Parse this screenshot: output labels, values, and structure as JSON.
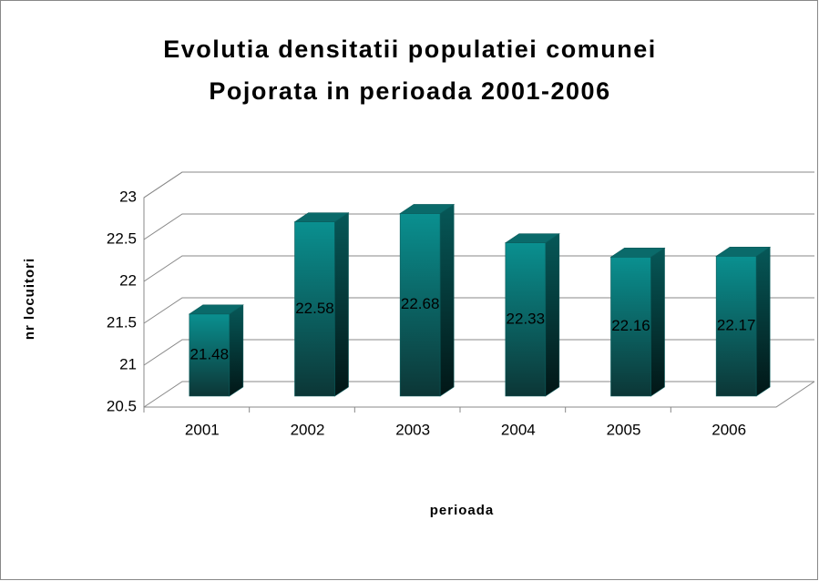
{
  "chart_data": {
    "type": "bar3d",
    "title": [
      "Evolutia densitatii populatiei comunei",
      "Pojorata in perioada 2001-2006"
    ],
    "x_label": "perioada",
    "y_label": "nr locuitori",
    "categories": [
      "2001",
      "2002",
      "2003",
      "2004",
      "2005",
      "2006"
    ],
    "values": [
      21.48,
      22.58,
      22.68,
      22.33,
      22.16,
      22.17
    ],
    "color": "#0a8c8c",
    "ylim": [
      20.5,
      23
    ],
    "yticks": [
      20.5,
      21,
      21.5,
      22,
      22.5,
      23
    ],
    "grid": true
  }
}
